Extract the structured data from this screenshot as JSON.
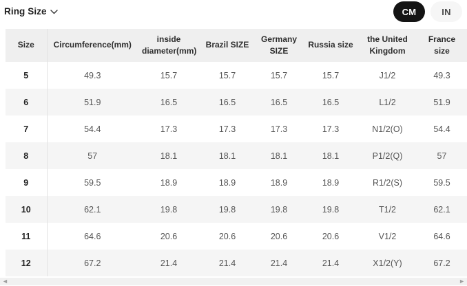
{
  "toolbar": {
    "dropdown_label": "Ring Size",
    "unit_cm": "CM",
    "unit_in": "IN",
    "selected_unit": "CM"
  },
  "icons": {
    "dropdown": "chevron-down-icon",
    "scroll_left": "arrow-left-icon",
    "scroll_right": "arrow-right-icon"
  },
  "colors": {
    "pill_active_bg": "#141414",
    "pill_active_text": "#ffffff",
    "pill_inactive_bg": "#f6f6f6",
    "header_bg": "#efefef",
    "row_stripe_bg": "#f5f5f5",
    "header_text": "#2e2e2e",
    "cell_text": "#555555"
  },
  "table": {
    "columns": [
      "Size",
      "Circumference(mm)",
      "inside diameter(mm)",
      "Brazil SIZE",
      "Germany SIZE",
      "Russia size",
      "the United Kingdom",
      "France size"
    ],
    "rows": [
      [
        "5",
        "49.3",
        "15.7",
        "15.7",
        "15.7",
        "15.7",
        "J1/2",
        "49.3"
      ],
      [
        "6",
        "51.9",
        "16.5",
        "16.5",
        "16.5",
        "16.5",
        "L1/2",
        "51.9"
      ],
      [
        "7",
        "54.4",
        "17.3",
        "17.3",
        "17.3",
        "17.3",
        "N1/2(O)",
        "54.4"
      ],
      [
        "8",
        "57",
        "18.1",
        "18.1",
        "18.1",
        "18.1",
        "P1/2(Q)",
        "57"
      ],
      [
        "9",
        "59.5",
        "18.9",
        "18.9",
        "18.9",
        "18.9",
        "R1/2(S)",
        "59.5"
      ],
      [
        "10",
        "62.1",
        "19.8",
        "19.8",
        "19.8",
        "19.8",
        "T1/2",
        "62.1"
      ],
      [
        "11",
        "64.6",
        "20.6",
        "20.6",
        "20.6",
        "20.6",
        "V1/2",
        "64.6"
      ],
      [
        "12",
        "67.2",
        "21.4",
        "21.4",
        "21.4",
        "21.4",
        "X1/2(Y)",
        "67.2"
      ]
    ],
    "scroll_left_glyph": "◄",
    "scroll_right_glyph": "►"
  }
}
